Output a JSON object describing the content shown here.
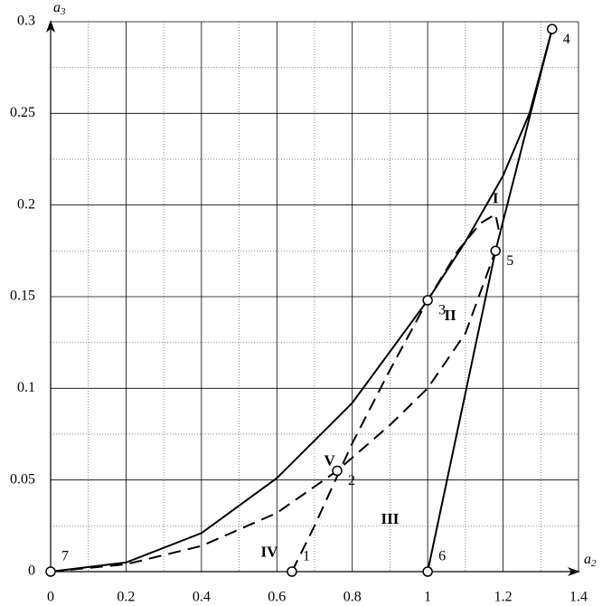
{
  "chart_data": {
    "type": "line",
    "xlabel": "a",
    "xlabel_sub": "2",
    "ylabel": "a",
    "ylabel_sub": "3",
    "xlim": [
      0,
      1.4
    ],
    "ylim": [
      0,
      0.3
    ],
    "xticks": [
      0,
      0.2,
      0.4,
      0.6,
      0.8,
      1,
      1.2,
      1.4
    ],
    "yticks": [
      0,
      0.05,
      0.1,
      0.15,
      0.2,
      0.25,
      0.3
    ],
    "xminor": [
      0.1,
      0.3,
      0.5,
      0.7,
      0.9,
      1.1,
      1.3
    ],
    "yminor": [
      0.025,
      0.075,
      0.125,
      0.175,
      0.225,
      0.275
    ],
    "grid": true,
    "series": [
      {
        "style": "solid",
        "color": "#000",
        "x": [
          0,
          0.2,
          0.4,
          0.6,
          0.8,
          1,
          1.1,
          1.2,
          1.27,
          1.33
        ],
        "values": [
          0,
          0.005,
          0.021,
          0.051,
          0.092,
          0.148,
          0.18,
          0.216,
          0.25,
          0.296
        ]
      },
      {
        "style": "solid",
        "color": "#000",
        "x": [
          1,
          1.18,
          1.33
        ],
        "values": [
          0,
          0.175,
          0.296
        ]
      },
      {
        "style": "dashed",
        "color": "#000",
        "x": [
          0,
          0.2,
          0.4,
          0.6,
          0.76,
          0.9,
          1,
          1.1,
          1.18
        ],
        "values": [
          0,
          0.004,
          0.014,
          0.032,
          0.055,
          0.08,
          0.1,
          0.13,
          0.175
        ]
      },
      {
        "style": "dashed",
        "color": "#000",
        "x": [
          0.64,
          0.7,
          0.8,
          0.9,
          1,
          1.08,
          1.14,
          1.18,
          1.19
        ],
        "values": [
          0,
          0.025,
          0.07,
          0.11,
          0.148,
          0.175,
          0.19,
          0.195,
          0.185
        ]
      }
    ],
    "points": [
      {
        "label": "7",
        "x": 0,
        "y": 0
      },
      {
        "label": "1",
        "x": 0.64,
        "y": 0
      },
      {
        "label": "2",
        "x": 0.76,
        "y": 0.055
      },
      {
        "label": "3",
        "x": 1,
        "y": 0.148
      },
      {
        "label": "4",
        "x": 1.33,
        "y": 0.296
      },
      {
        "label": "5",
        "x": 1.18,
        "y": 0.175
      },
      {
        "label": "6",
        "x": 1,
        "y": 0
      }
    ],
    "regions": [
      {
        "label": "I",
        "x": 1.18,
        "y": 0.203
      },
      {
        "label": "II",
        "x": 1.06,
        "y": 0.139
      },
      {
        "label": "III",
        "x": 0.9,
        "y": 0.028
      },
      {
        "label": "IV",
        "x": 0.58,
        "y": 0.01
      },
      {
        "label": "V",
        "x": 0.74,
        "y": 0.06
      }
    ]
  }
}
